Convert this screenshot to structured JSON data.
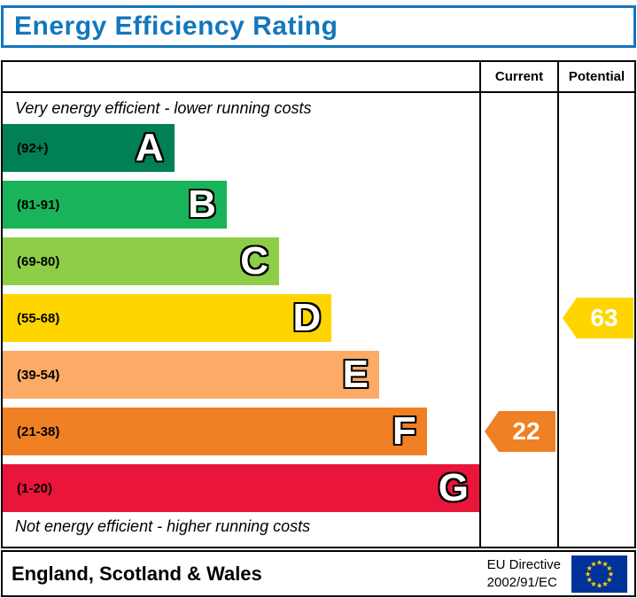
{
  "title": "Energy Efficiency Rating",
  "colors": {
    "title_blue": "#1277bd",
    "border_black": "#000000",
    "flag_blue": "#003399",
    "flag_star_yellow": "#ffcc00"
  },
  "columns": {
    "current_label": "Current",
    "potential_label": "Potential"
  },
  "notes": {
    "top": "Very energy efficient - lower running costs",
    "bottom": "Not energy efficient - higher running costs"
  },
  "bands": [
    {
      "letter": "A",
      "range": "(92+)",
      "color": "#008054",
      "width_pct": 36
    },
    {
      "letter": "B",
      "range": "(81-91)",
      "color": "#19b459",
      "width_pct": 47
    },
    {
      "letter": "C",
      "range": "(69-80)",
      "color": "#8dce46",
      "width_pct": 58
    },
    {
      "letter": "D",
      "range": "(55-68)",
      "color": "#ffd500",
      "width_pct": 69
    },
    {
      "letter": "E",
      "range": "(39-54)",
      "color": "#fcaa65",
      "width_pct": 79
    },
    {
      "letter": "F",
      "range": "(21-38)",
      "color": "#ef8023",
      "width_pct": 89
    },
    {
      "letter": "G",
      "range": "(1-20)",
      "color": "#e9153b",
      "width_pct": 100
    }
  ],
  "current": {
    "value": "22",
    "band": "F",
    "color": "#ef8023"
  },
  "potential": {
    "value": "63",
    "band": "D",
    "color": "#ffd500"
  },
  "footer": {
    "region": "England, Scotland & Wales",
    "directive_line1": "EU Directive",
    "directive_line2": "2002/91/EC"
  },
  "chart_data": {
    "type": "bar",
    "title": "Energy Efficiency Rating",
    "categories": [
      "A",
      "B",
      "C",
      "D",
      "E",
      "F",
      "G"
    ],
    "band_ranges": [
      "92+",
      "81-91",
      "69-80",
      "55-68",
      "39-54",
      "21-38",
      "1-20"
    ],
    "band_colors": [
      "#008054",
      "#19b459",
      "#8dce46",
      "#ffd500",
      "#fcaa65",
      "#ef8023",
      "#e9153b"
    ],
    "values": [
      36,
      47,
      58,
      69,
      79,
      89,
      100
    ],
    "markers": [
      {
        "name": "Current",
        "value": 22,
        "band": "F"
      },
      {
        "name": "Potential",
        "value": 63,
        "band": "D"
      }
    ],
    "annotations": [
      "Very energy efficient - lower running costs",
      "Not energy efficient - higher running costs"
    ],
    "legend": [
      "Current",
      "Potential"
    ],
    "xlabel": "",
    "ylabel": ""
  }
}
